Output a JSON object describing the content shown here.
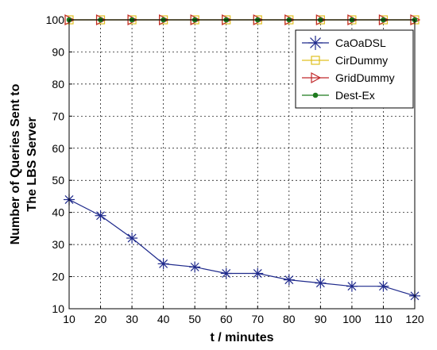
{
  "chart_data": {
    "type": "line",
    "title": "",
    "xlabel": "t / minutes",
    "ylabel_lines": [
      "Number of Queries Sent to",
      "The LBS Server"
    ],
    "x": [
      10,
      20,
      30,
      40,
      50,
      60,
      70,
      80,
      90,
      100,
      110,
      120
    ],
    "xlim": [
      10,
      120
    ],
    "ylim": [
      10,
      100
    ],
    "yticks": [
      10,
      20,
      30,
      40,
      50,
      60,
      70,
      80,
      90,
      100
    ],
    "grid": true,
    "legend_position": "top-right",
    "series": [
      {
        "name": "CaOaDSL",
        "color": "#1f2a8c",
        "marker": "asterisk",
        "values": [
          44,
          39,
          32,
          24,
          23,
          21,
          21,
          19,
          18,
          17,
          17,
          14
        ]
      },
      {
        "name": "CirDummy",
        "color": "#e0c020",
        "marker": "square",
        "values": [
          100,
          100,
          100,
          100,
          100,
          100,
          100,
          100,
          100,
          100,
          100,
          100
        ]
      },
      {
        "name": "GridDummy",
        "color": "#c0282a",
        "marker": "triangle-right",
        "values": [
          100,
          100,
          100,
          100,
          100,
          100,
          100,
          100,
          100,
          100,
          100,
          100
        ]
      },
      {
        "name": "Dest-Ex",
        "color": "#1e7a1e",
        "marker": "dot",
        "values": [
          100,
          100,
          100,
          100,
          100,
          100,
          100,
          100,
          100,
          100,
          100,
          100
        ]
      }
    ]
  }
}
